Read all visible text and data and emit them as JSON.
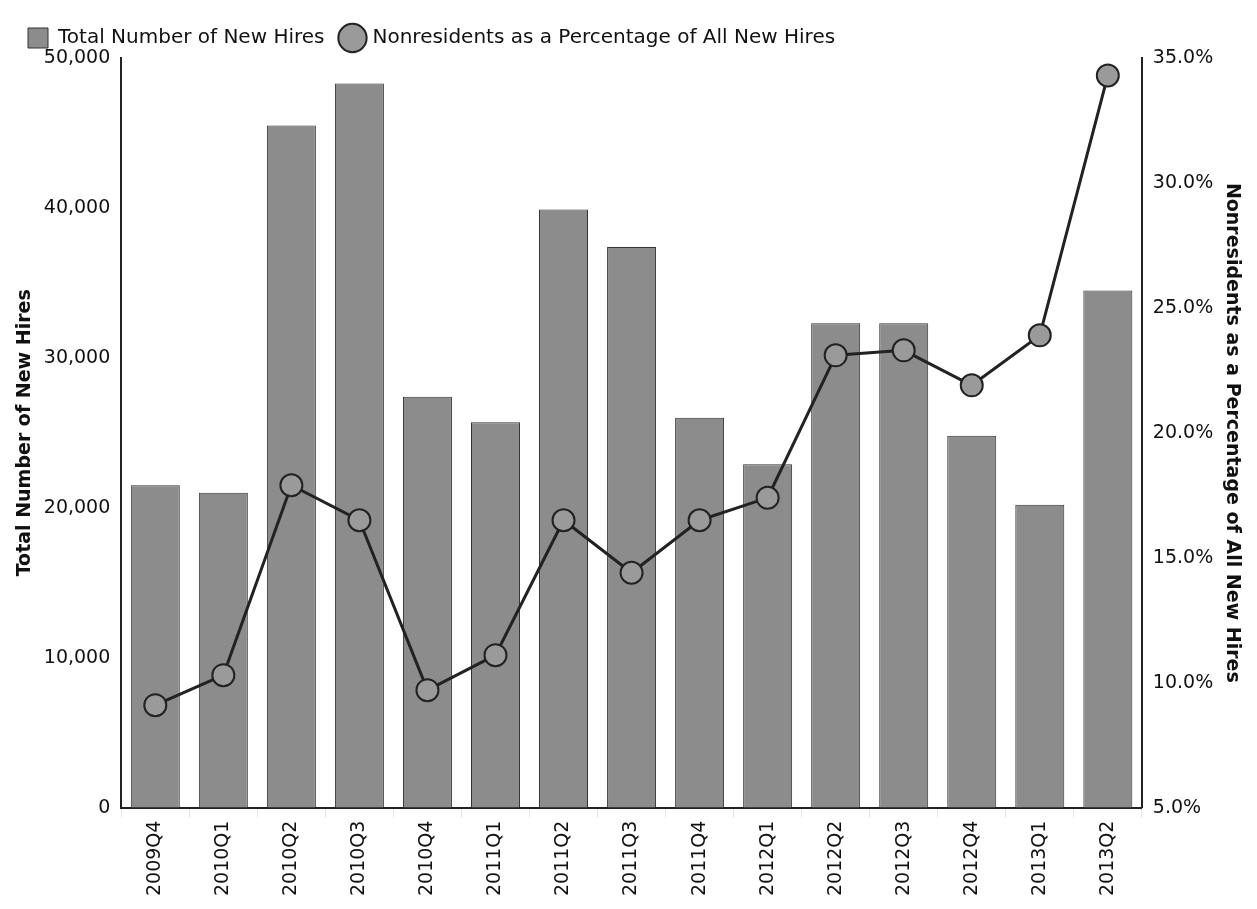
{
  "chart_data": {
    "type": "bar",
    "ylabel": "Total Number of New Hires",
    "y2label": "Nonresidents as a Percentage of All New Hires",
    "categories": [
      "2009Q4",
      "2010Q1",
      "2010Q2",
      "2010Q3",
      "2010Q4",
      "2011Q1",
      "2011Q2",
      "2011Q3",
      "2011Q4",
      "2012Q1",
      "2012Q2",
      "2012Q3",
      "2012Q4",
      "2013Q1",
      "2013Q2"
    ],
    "series": [
      {
        "name": "Total Number of New Hires",
        "color": "#8c8c8c",
        "values": [
          21500,
          21000,
          45500,
          48300,
          27400,
          25700,
          39900,
          37400,
          26000,
          22900,
          32300,
          32300,
          24800,
          20200,
          34500
        ]
      },
      {
        "name": "Nonresidents as a Percentage of All New Hires",
        "type": "line",
        "axis": "y2",
        "color": "#222222",
        "marker": "circle",
        "values": [
          9.1,
          10.3,
          17.9,
          16.5,
          9.7,
          11.1,
          16.5,
          14.4,
          16.5,
          17.4,
          23.1,
          23.3,
          21.9,
          23.9,
          34.3
        ]
      }
    ],
    "ylim": [
      0,
      50000
    ],
    "yticks": [
      {
        "value": 0,
        "label": "0"
      },
      {
        "value": 10000,
        "label": "10,000"
      },
      {
        "value": 20000,
        "label": "20,000"
      },
      {
        "value": 30000,
        "label": "30,000"
      },
      {
        "value": 40000,
        "label": "40,000"
      },
      {
        "value": 50000,
        "label": "50,000"
      }
    ],
    "y2lim": [
      5,
      35
    ],
    "y2ticks": [
      {
        "value": 5,
        "label": "5.0%"
      },
      {
        "value": 10,
        "label": "10.0%"
      },
      {
        "value": 15,
        "label": "15.0%"
      },
      {
        "value": 20,
        "label": "20.0%"
      },
      {
        "value": 25,
        "label": "25.0%"
      },
      {
        "value": 30,
        "label": "30.0%"
      },
      {
        "value": 35,
        "label": "35.0%"
      }
    ],
    "grid": false,
    "legend": "top left"
  }
}
